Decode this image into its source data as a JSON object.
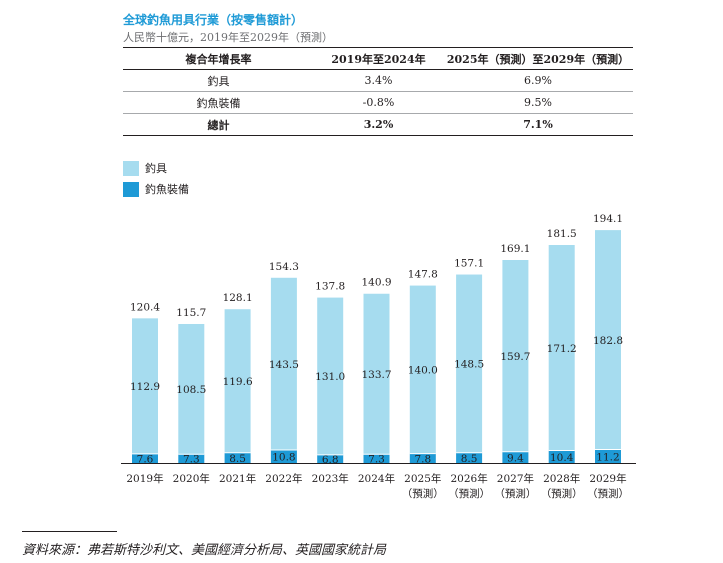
{
  "title": "全球釣魚用具行業（按零售額計）",
  "subtitle": "人民幣十億元，2019年至2029年（預測）",
  "table": {
    "headers": [
      "複合年增長率",
      "2019年至2024年",
      "2025年（預測）至2029年（預測）"
    ],
    "rows": [
      {
        "label": "釣具",
        "cagr_hist": "3.4%",
        "cagr_fcst": "6.9%"
      },
      {
        "label": "釣魚裝備",
        "cagr_hist": "-0.8%",
        "cagr_fcst": "9.5%"
      },
      {
        "label": "總計",
        "cagr_hist": "3.2%",
        "cagr_fcst": "7.1%"
      }
    ]
  },
  "legend": [
    {
      "label": "釣具",
      "color": "#a6dcef"
    },
    {
      "label": "釣魚裝備",
      "color": "#1e9ad6"
    }
  ],
  "chart_data": {
    "type": "bar",
    "stacked": true,
    "categories": [
      "2019年",
      "2020年",
      "2021年",
      "2022年",
      "2023年",
      "2024年",
      "2025年",
      "2026年",
      "2027年",
      "2028年",
      "2029年"
    ],
    "category_notes": [
      "",
      "",
      "",
      "",
      "",
      "",
      "（預測）",
      "（預測）",
      "（預測）",
      "（預測）",
      "（預測）"
    ],
    "series": [
      {
        "name": "釣魚裝備",
        "color": "#1e9ad6",
        "values": [
          7.6,
          7.3,
          8.5,
          10.8,
          6.8,
          7.3,
          7.8,
          8.5,
          9.4,
          10.4,
          11.2
        ]
      },
      {
        "name": "釣具",
        "color": "#a6dcef",
        "values": [
          112.9,
          108.5,
          119.6,
          143.5,
          131.0,
          133.7,
          140.0,
          148.5,
          159.7,
          171.2,
          182.8
        ]
      }
    ],
    "totals": [
      120.4,
      115.7,
      128.1,
      154.3,
      137.8,
      140.9,
      147.8,
      157.1,
      169.1,
      181.5,
      194.1
    ],
    "ylim": [
      0,
      194.1
    ]
  },
  "source": "資料來源：弗若斯特沙利文、美國經濟分析局、英國國家統計局"
}
